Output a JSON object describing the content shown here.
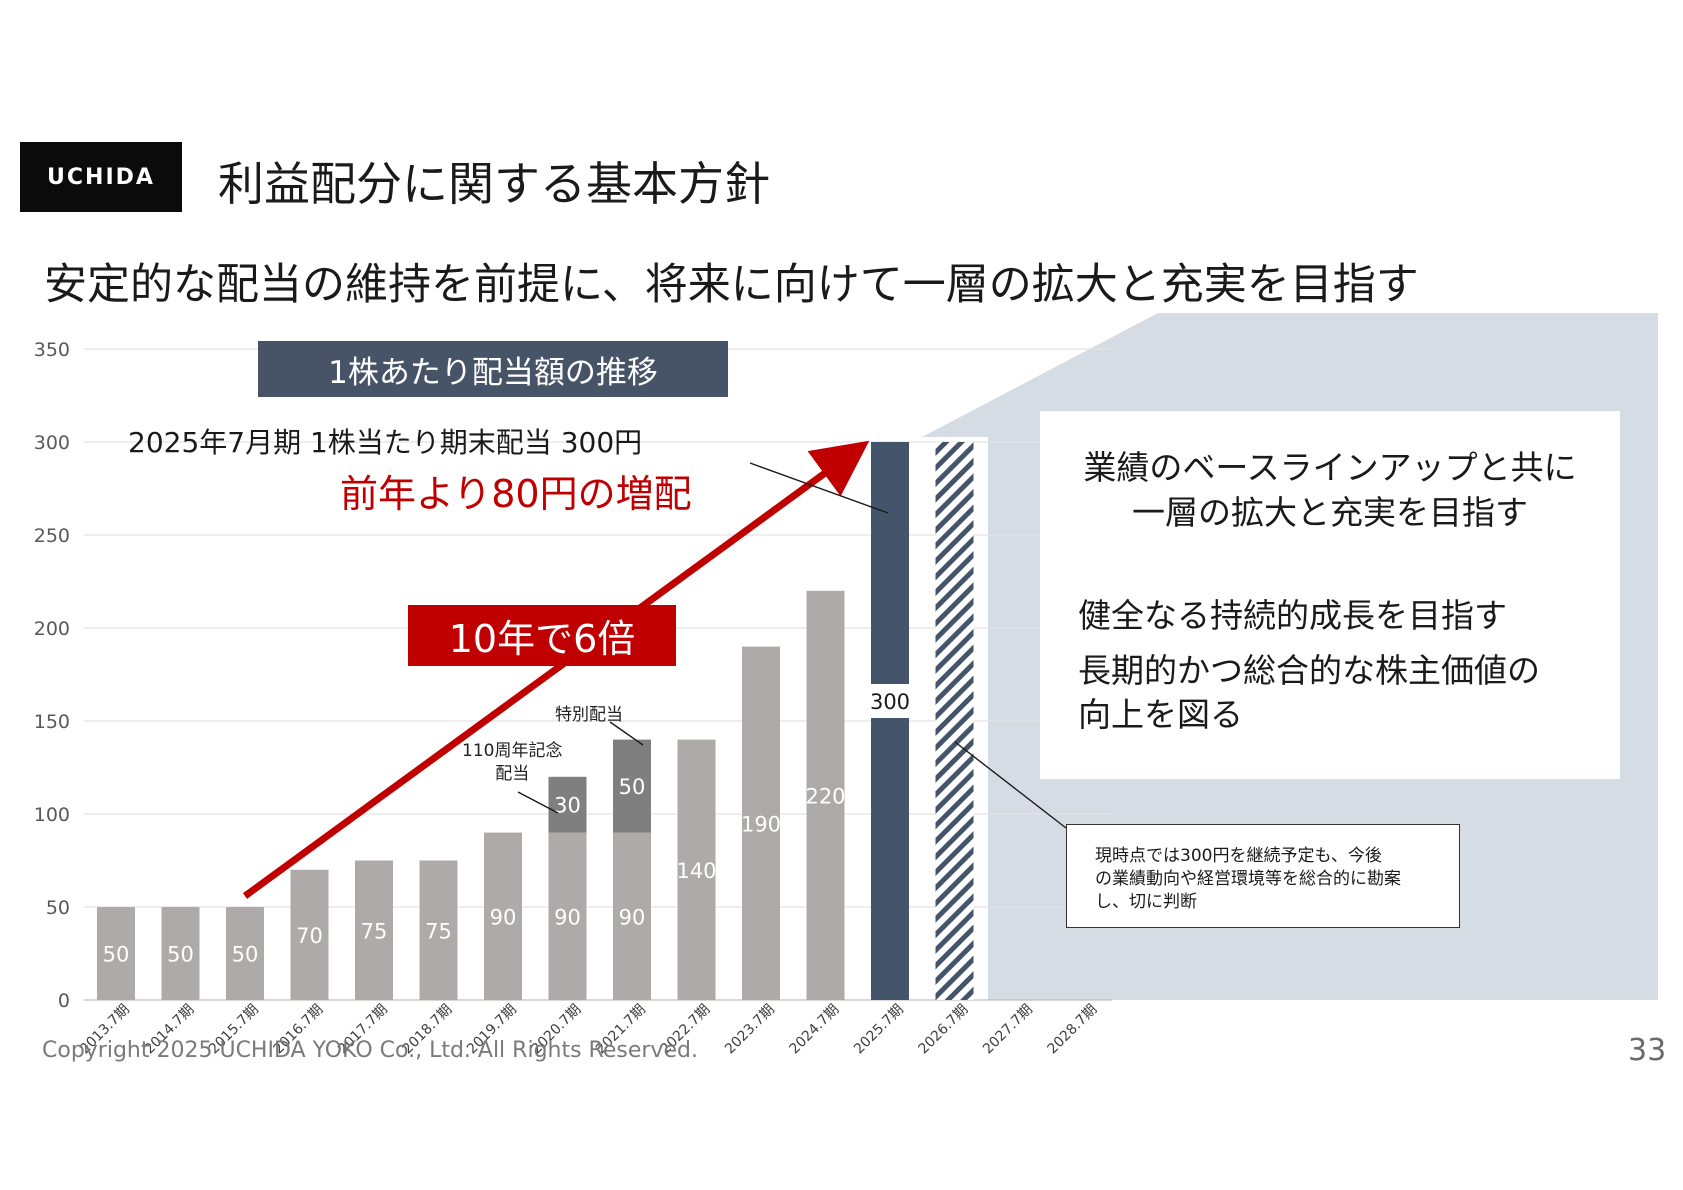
{
  "header": {
    "logo_text": "UCHIDA",
    "title": "利益配分に関する基本方針",
    "subtitle": "安定的な配当の維持を前提に、将来に向けて一層の拡大と充実を目指す"
  },
  "chart_box_label": "1株あたり配当額の推移",
  "annotations": {
    "final_dividend": "2025年7月期 1株当たり期末配当 300円",
    "increase": "前年より80円の増配",
    "growth": "10年で6倍",
    "special": "特別配当",
    "anniversary_line1": "110周年記念",
    "anniversary_line2": "配当"
  },
  "right_panel": {
    "heading_line1": "業績のベースラインアップと共に",
    "heading_line2": "一層の拡大と充実を目指す",
    "point1": "健全なる持続的成長を目指す",
    "point2_line1": "長期的かつ総合的な株主価値の",
    "point2_line2": "向上を図る"
  },
  "memo": {
    "line1": "現時点では300円を継続予定も、今後",
    "line2": "の業績動向や経営環境等を総合的に勘案",
    "line3": "し、切に判断"
  },
  "footer": {
    "copyright": "Copyright 2025 UCHIDA YOKO Co., Ltd. All Rights Reserved.",
    "page": "33"
  },
  "colors": {
    "bar": "#aeaaaa",
    "bar_extra": "#7f7f7f",
    "bar_current": "#44546a",
    "accent": "#c00000",
    "panel": "#d6dce4",
    "chart_box": "#475468"
  },
  "chart_data": {
    "type": "bar",
    "categories": [
      "2013.7期",
      "2014.7期",
      "2015.7期",
      "2016.7期",
      "2017.7期",
      "2018.7期",
      "2019.7期",
      "2020.7期",
      "2021.7期",
      "2022.7期",
      "2023.7期",
      "2024.7期",
      "2025.7期",
      "2026.7期",
      "2027.7期",
      "2028.7期"
    ],
    "series": [
      {
        "values": [
          50,
          50,
          50,
          70,
          75,
          75,
          90,
          90,
          90,
          140,
          190,
          220,
          300,
          300,
          null,
          null
        ]
      },
      {
        "values": [
          null,
          null,
          null,
          null,
          null,
          null,
          null,
          30,
          50,
          null,
          null,
          null,
          null,
          null,
          null,
          null
        ]
      }
    ],
    "ylim": [
      0,
      350
    ],
    "yticks": [
      0,
      50,
      100,
      150,
      200,
      250,
      300,
      350
    ],
    "grid": true
  }
}
